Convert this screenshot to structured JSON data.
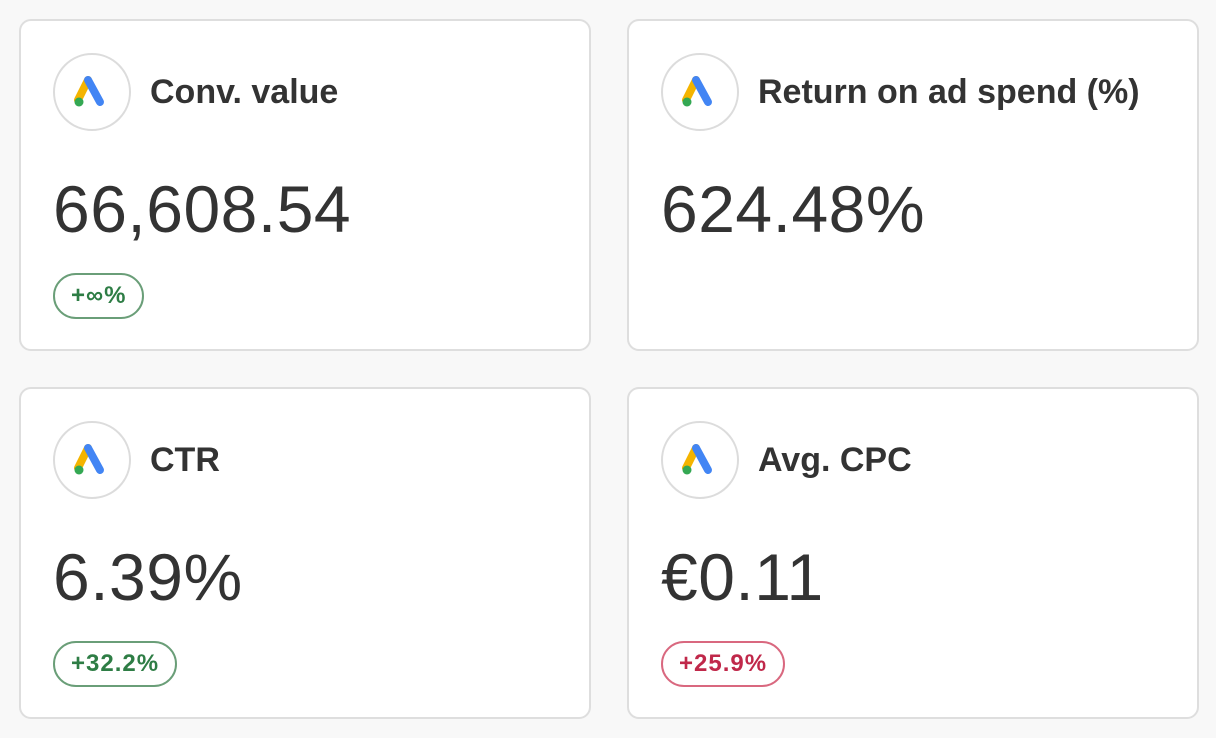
{
  "colors": {
    "positive": "#2e7d45",
    "positive_border": "#6a9e78",
    "negative": "#c0284a",
    "negative_border": "#d9687f"
  },
  "cards": [
    {
      "icon": "google-ads-icon",
      "title": "Conv. value",
      "value": "66,608.54",
      "change": "+∞%",
      "trend": "positive"
    },
    {
      "icon": "google-ads-icon",
      "title": "Return on ad spend (%)",
      "value": "624.48%"
    },
    {
      "icon": "google-ads-icon",
      "title": "CTR",
      "value": "6.39%",
      "change": "+32.2%",
      "trend": "positive"
    },
    {
      "icon": "google-ads-icon",
      "title": "Avg. CPC",
      "value": "€0.11",
      "change": "+25.9%",
      "trend": "negative"
    }
  ]
}
